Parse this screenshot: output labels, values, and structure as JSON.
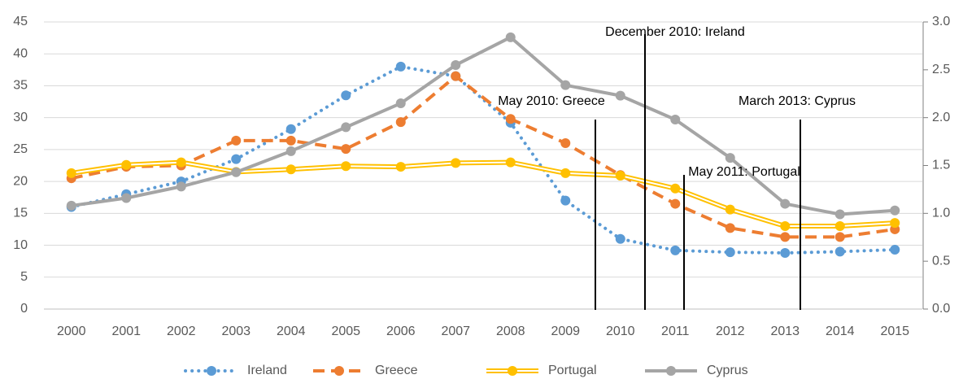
{
  "chart_data": {
    "type": "line",
    "categories": [
      "2000",
      "2001",
      "2002",
      "2003",
      "2004",
      "2005",
      "2006",
      "2007",
      "2008",
      "2009",
      "2010",
      "2011",
      "2012",
      "2013",
      "2014",
      "2015"
    ],
    "series": [
      {
        "name": "Ireland",
        "color": "#5b9bd5",
        "line_style": "dotted",
        "values": [
          16,
          18,
          20,
          23.5,
          28.2,
          33.5,
          38,
          36.5,
          29.2,
          17,
          11,
          9.2,
          8.9,
          8.8,
          9,
          9.3
        ]
      },
      {
        "name": "Greece",
        "color": "#ed7d31",
        "line_style": "dashed",
        "values": [
          20.5,
          22.3,
          22.5,
          26.4,
          26.4,
          25.1,
          29.3,
          36.5,
          29.8,
          26,
          21,
          16.5,
          12.7,
          11.3,
          11.3,
          12.5
        ]
      },
      {
        "name": "Portugal",
        "color": "#ffc000",
        "line_style": "double",
        "values": [
          21.3,
          22.6,
          23,
          21.5,
          21.9,
          22.4,
          22.3,
          22.9,
          23,
          21.3,
          20.9,
          18.9,
          15.6,
          13,
          13,
          13.5
        ]
      },
      {
        "name": "Cyprus",
        "color": "#a5a5a5",
        "line_style": "solid",
        "axis": "y2",
        "values": [
          1.08,
          1.16,
          1.28,
          1.43,
          1.65,
          1.9,
          2.15,
          2.55,
          2.84,
          2.34,
          2.23,
          1.98,
          1.58,
          1.1,
          0.99,
          1.03
        ]
      }
    ],
    "ylim": [
      0,
      45
    ],
    "yticks": [
      0,
      5,
      10,
      15,
      20,
      25,
      30,
      35,
      40,
      45
    ],
    "y2lim": [
      0,
      3
    ],
    "y2ticks": [
      {
        "value": 0,
        "label": "0.0"
      },
      0.5,
      {
        "value": 1,
        "label": "1.0"
      },
      1.5,
      {
        "value": 2,
        "label": "2.0"
      },
      2.5,
      {
        "value": 3,
        "label": "3.0"
      }
    ],
    "grid": true,
    "legend": "bottom",
    "annotations": [
      "May 2010: Greece",
      "December 2010: Ireland",
      "May 2011: Portugal",
      "March 2013: Cyprus"
    ]
  }
}
